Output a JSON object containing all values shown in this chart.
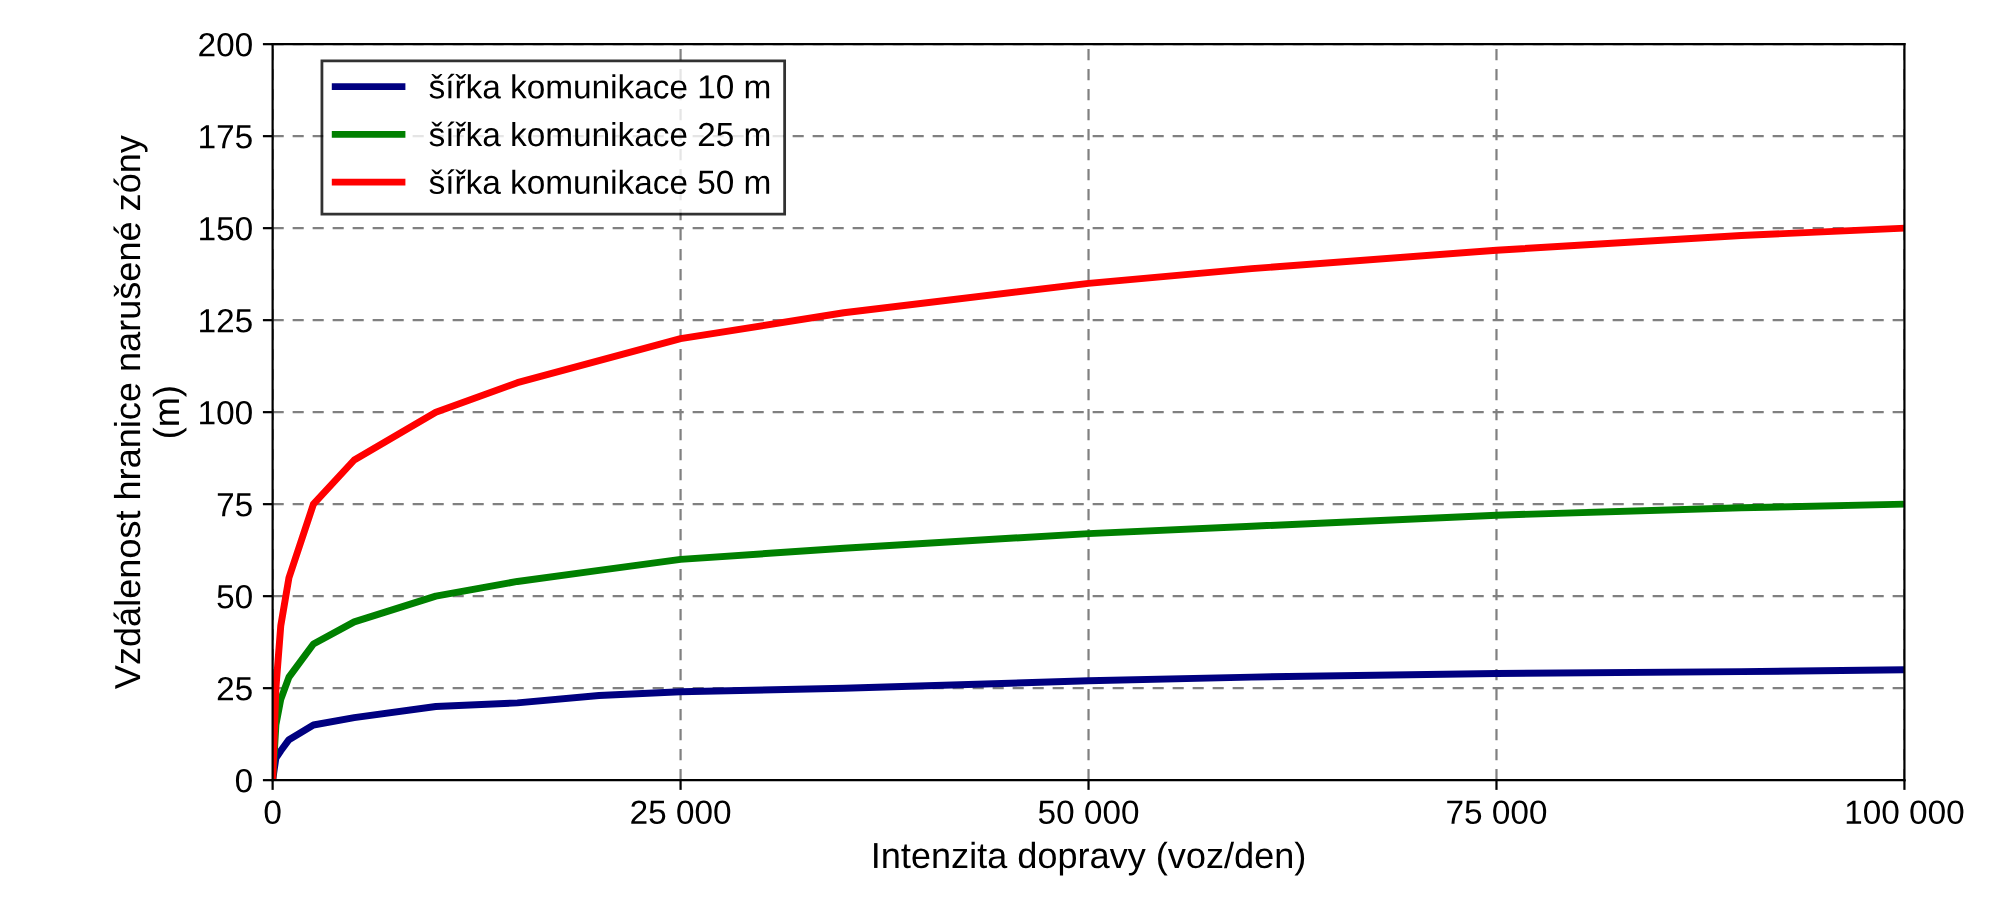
{
  "chart_data": {
    "type": "line",
    "xlabel": "Intenzita dopravy (voz/den)",
    "ylabel": "Vzdálenost hranice narušené zóny\n(m)",
    "xlim": [
      0,
      100000
    ],
    "ylim": [
      0,
      200
    ],
    "xticks": [
      0,
      {
        "value": 25000,
        "label": "25 000"
      },
      {
        "value": 50000,
        "label": "50 000"
      },
      {
        "value": 75000,
        "label": "75 000"
      },
      {
        "value": 100000,
        "label": "100 000"
      }
    ],
    "yticks": [
      0,
      25,
      50,
      75,
      100,
      125,
      150,
      175,
      200
    ],
    "x": [
      0,
      200,
      500,
      1000,
      2500,
      5000,
      10000,
      15000,
      20000,
      25000,
      35000,
      50000,
      60000,
      75000,
      90000,
      100000
    ],
    "series": [
      {
        "name": "šířka komunikace 10 m",
        "color": "#000080",
        "values": [
          0,
          6,
          8,
          11,
          15,
          17,
          20,
          21,
          23,
          24,
          25,
          27,
          28,
          29,
          29.5,
          30
        ]
      },
      {
        "name": "šířka komunikace 25 m",
        "color": "#008000",
        "values": [
          0,
          15,
          22,
          28,
          37,
          43,
          50,
          54,
          57,
          60,
          63,
          67,
          69,
          72,
          74,
          75
        ]
      },
      {
        "name": "šířka komunikace 50 m",
        "color": "#ff0000",
        "values": [
          0,
          25,
          42,
          55,
          75,
          87,
          100,
          108,
          114,
          120,
          127,
          135,
          139,
          144,
          148,
          150
        ]
      }
    ],
    "grid": true,
    "legend": "top left",
    "line_style": "solid",
    "marker": "none"
  }
}
